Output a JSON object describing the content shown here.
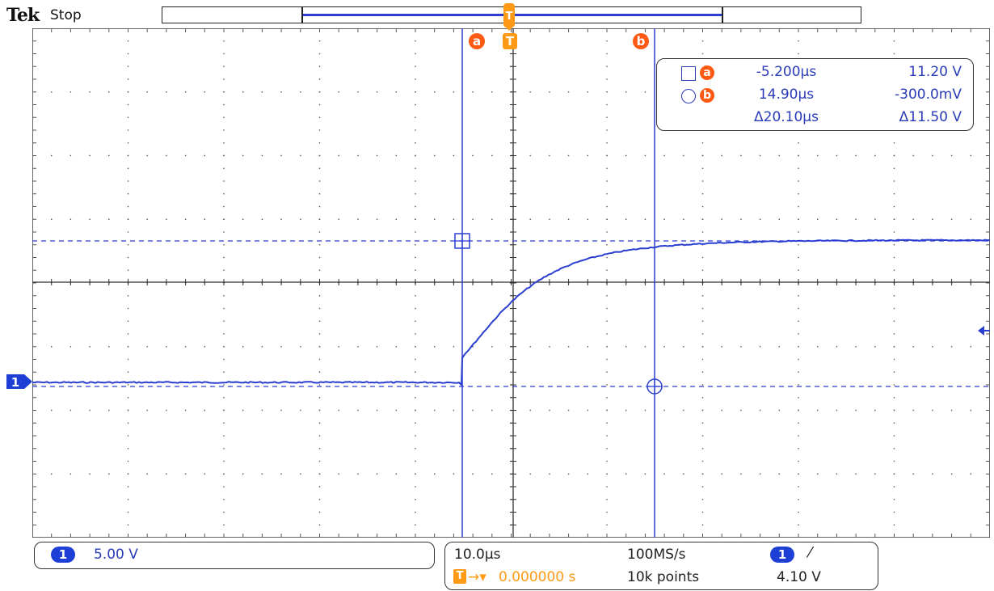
{
  "header": {
    "brand": "Tek",
    "acquisition_state": "Stop"
  },
  "cursors": {
    "a": {
      "label": "a",
      "time": "-5.200µs",
      "value": "11.20 V"
    },
    "b": {
      "label": "b",
      "time": "14.90µs",
      "value": "-300.0mV"
    },
    "delta": {
      "time": "Δ20.10µs",
      "value": "Δ11.50 V"
    }
  },
  "trigger": {
    "marker": "T"
  },
  "channel": {
    "id": "1",
    "scale": "5.00 V"
  },
  "horizontal": {
    "time_per_div": "10.0µs",
    "sample_rate": "100MS/s",
    "record_length": "10k points",
    "trigger_position": "0.000000 s"
  },
  "trigger_settings": {
    "channel": "1",
    "slope_symbol": "⌠",
    "level": "4.10 V"
  },
  "colors": {
    "trace": "#2a3fd0",
    "cursor_badge": "#ff5a14",
    "trigger": "#ff9a16",
    "channel": "#1e3fd6"
  }
}
